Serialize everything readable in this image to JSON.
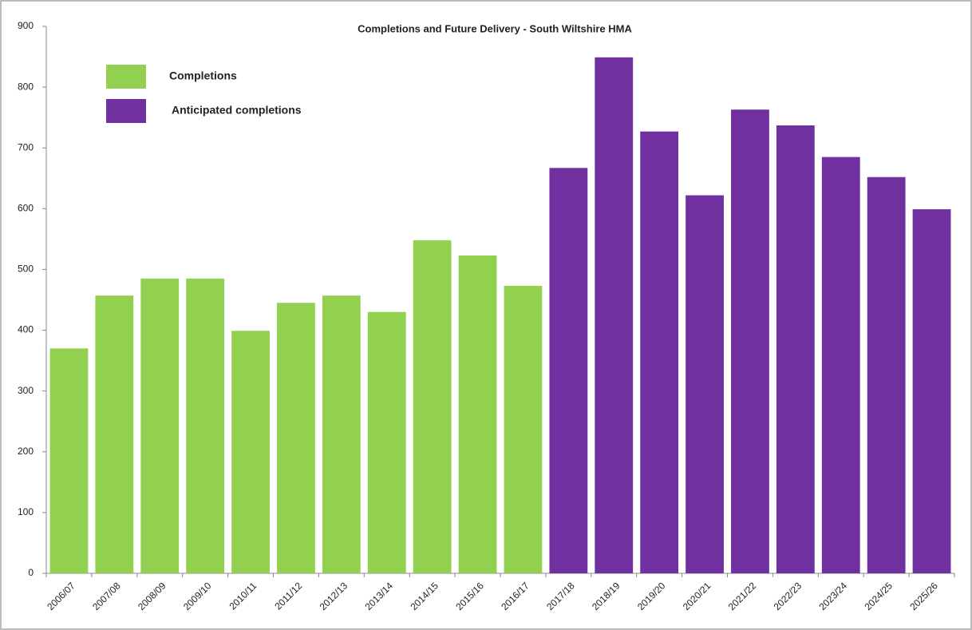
{
  "chart_data": {
    "type": "bar",
    "title": "Completions and Future Delivery - South Wiltshire HMA",
    "categories": [
      "2006/07",
      "2007/08",
      "2008/09",
      "2009/10",
      "2010/11",
      "2011/12",
      "2012/13",
      "2013/14",
      "2014/15",
      "2015/16",
      "2016/17",
      "2017/18",
      "2018/19",
      "2019/20",
      "2020/21",
      "2021/22",
      "2022/23",
      "2023/24",
      "2024/25",
      "2025/26"
    ],
    "series": [
      {
        "name": "Completions",
        "color": "#92d050",
        "values": [
          370,
          457,
          485,
          485,
          399,
          445,
          457,
          430,
          548,
          523,
          473,
          null,
          null,
          null,
          null,
          null,
          null,
          null,
          null,
          null
        ]
      },
      {
        "name": "Anticipated completions",
        "color": "#7030a0",
        "values": [
          null,
          null,
          null,
          null,
          null,
          null,
          null,
          null,
          null,
          null,
          null,
          667,
          849,
          727,
          622,
          763,
          737,
          685,
          652,
          599
        ]
      }
    ],
    "ylim": [
      0,
      900
    ],
    "yticks": [
      0,
      100,
      200,
      300,
      400,
      500,
      600,
      700,
      800,
      900
    ],
    "grid": false
  }
}
